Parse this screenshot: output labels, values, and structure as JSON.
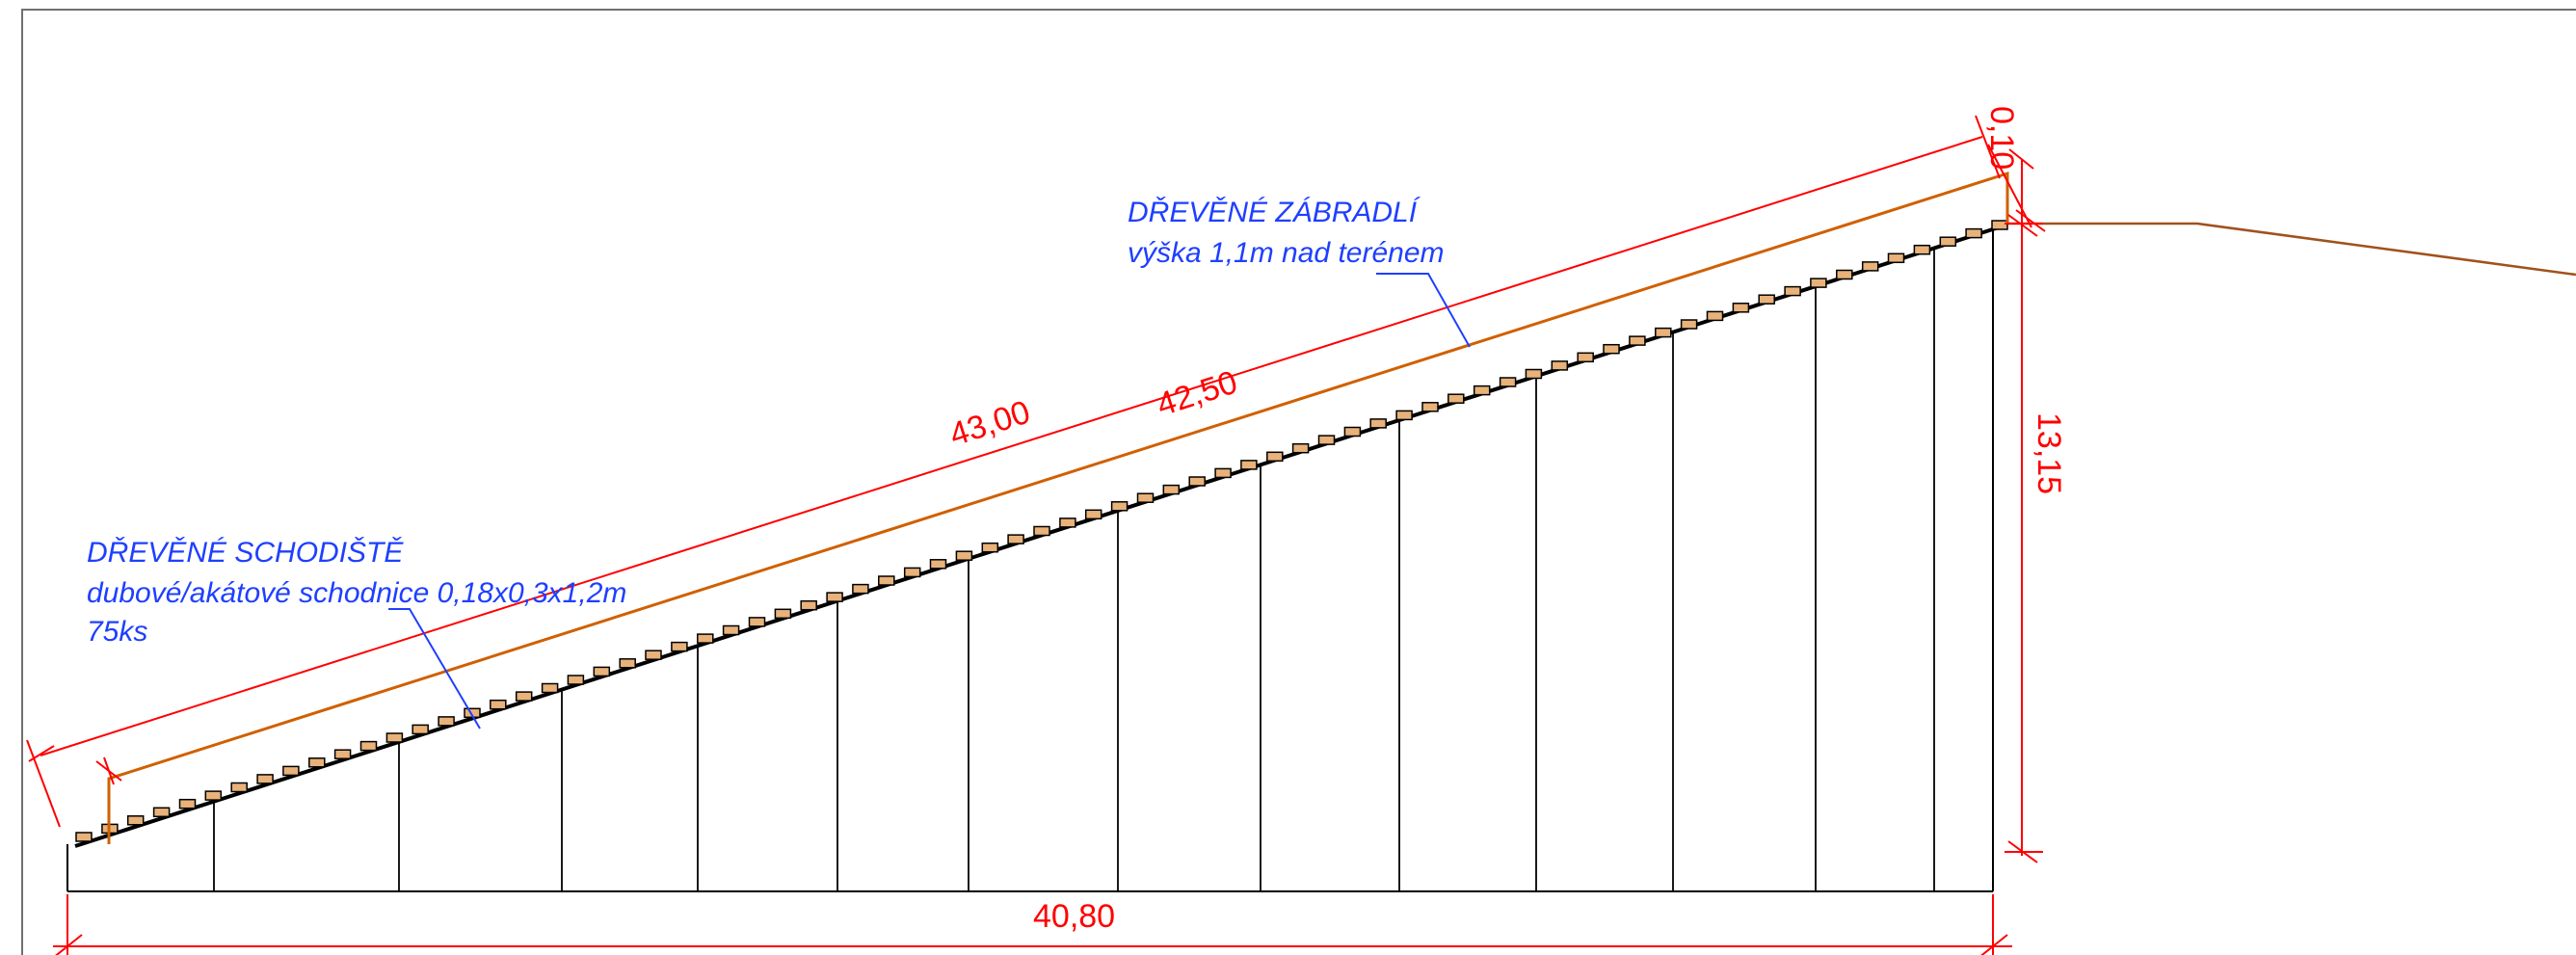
{
  "colors": {
    "dimension": "#ff0000",
    "railing": "#d06000",
    "terrain": "#a0521c",
    "annotation": "#1f3fff",
    "structure": "#000000",
    "step_fill": "#e8b27a"
  },
  "dimensions": {
    "upper_slope_length": "43,00",
    "railing_length": "42,50",
    "horizontal_length": "40,80",
    "height": "13,15",
    "top_offset": "0,10"
  },
  "notes": {
    "railing": {
      "title": "DŘEVĚNÉ ZÁBRADLÍ",
      "line1": "výška 1,1m nad terénem"
    },
    "stairs": {
      "title": "DŘEVĚNÉ SCHODIŠTĚ",
      "line1": "dubové/akátové schodnice 0,18x0,3x1,2m",
      "line2": "75ks"
    }
  },
  "stairs": {
    "step_count": 75
  }
}
